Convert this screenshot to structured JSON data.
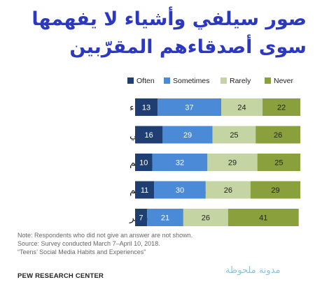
{
  "title_lines": [
    "صور سيلفي وأشياء لا يفهمها",
    "سوى أصدقاءهم المقرّبين"
  ],
  "colors": {
    "title": "#2d38c0",
    "often": "#1f3f73",
    "sometimes": "#4a8ad6",
    "rarely": "#c4d4a3",
    "never": "#8aa03c"
  },
  "chart_data": {
    "type": "bar",
    "orientation": "horizontal",
    "stacked": true,
    "legend_position": "top",
    "xlim": [
      0,
      100
    ],
    "categories": [
      "أشياء لا يفهمها إلا الأصدقاء",
      "سيلفي",
      "تحديثات موقعهم",
      "فيديوهات صوّروها بأنفسهم",
      "أشياء للتفاخر"
    ],
    "series": [
      {
        "name": "Often",
        "color": "#1f3f73",
        "values": [
          13,
          16,
          10,
          11,
          7
        ]
      },
      {
        "name": "Sometimes",
        "color": "#4a8ad6",
        "values": [
          37,
          29,
          32,
          30,
          21
        ]
      },
      {
        "name": "Rarely",
        "color": "#c4d4a3",
        "values": [
          24,
          25,
          29,
          26,
          26
        ]
      },
      {
        "name": "Never",
        "color": "#8aa03c",
        "values": [
          22,
          26,
          25,
          29,
          41
        ]
      }
    ]
  },
  "footer": {
    "note": "Note: Respondents who did not give an answer are not shown.",
    "source": "Source: Survey conducted March 7–April 10, 2018.",
    "report": "“Teens’ Social Media Habits and Experiences”"
  },
  "org": "PEW RESEARCH CENTER",
  "watermark": "مدونة ملحوظة"
}
